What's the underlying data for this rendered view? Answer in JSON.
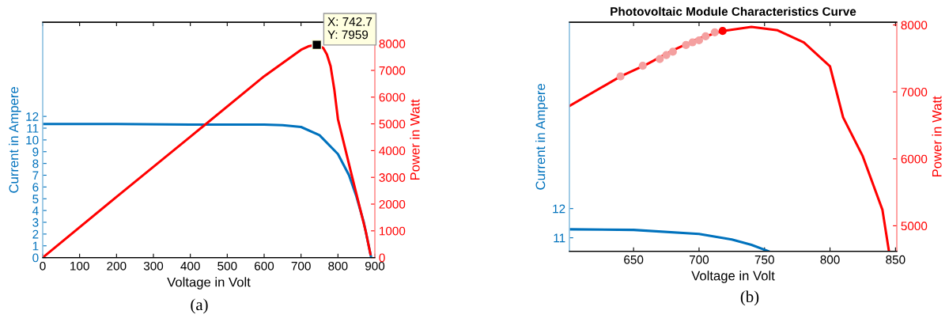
{
  "chart_data": [
    {
      "type": "line",
      "xlabel": "Voltage in Volt",
      "ylabel": "Current in Ampere",
      "y2label": "Power in Watt",
      "xlim": [
        0,
        900
      ],
      "xticks": [
        0,
        100,
        200,
        300,
        400,
        500,
        600,
        700,
        800,
        900
      ],
      "ylim": [
        0,
        20
      ],
      "yticks": [
        0,
        1,
        2,
        3,
        4,
        5,
        6,
        7,
        8,
        9,
        10,
        11,
        12
      ],
      "y2lim": [
        0,
        8800
      ],
      "y2ticks": [
        0,
        1000,
        2000,
        3000,
        4000,
        5000,
        6000,
        7000,
        8000
      ],
      "grid": false,
      "legend": false,
      "series": [
        {
          "color": "#0072bd",
          "x": [
            0,
            200,
            400,
            600,
            650,
            700,
            750,
            800,
            830,
            850,
            870,
            890
          ],
          "values": [
            11.35,
            11.35,
            11.3,
            11.3,
            11.25,
            11.1,
            10.4,
            8.8,
            7.0,
            5.2,
            3.0,
            0
          ]
        },
        {
          "color": "#ff0000",
          "axis": "y2",
          "x": [
            0,
            200,
            400,
            600,
            700,
            720,
            742.7,
            760,
            770,
            780,
            790,
            800,
            837,
            875,
            888
          ],
          "values": [
            0,
            2270,
            4520,
            6780,
            7770,
            7900,
            7959,
            7840,
            7600,
            7160,
            6300,
            5180,
            3100,
            1000,
            130
          ]
        },
        {
          "type": "scatter",
          "color": "#000000",
          "axis": "y2",
          "marker": "square",
          "x": [
            742.7
          ],
          "values": [
            7959
          ]
        }
      ],
      "annotations": [
        "X: 742.7\nY: 7959",
        "(a)"
      ]
    },
    {
      "type": "line",
      "title": "Photovoltaic Module Characteristics Curve",
      "xlabel": "Voltage in Volt",
      "ylabel": "Current in Ampere",
      "y2label": "Power in Watt",
      "xlim": [
        601,
        851
      ],
      "xticks": [
        650,
        700,
        750,
        800,
        850
      ],
      "ylim": [
        10.54,
        18.38
      ],
      "yticks": [
        11,
        12
      ],
      "y2lim": [
        4620,
        8040
      ],
      "y2ticks": [
        5000,
        6000,
        7000,
        8000
      ],
      "grid": false,
      "legend": false,
      "series": [
        {
          "color": "#0072bd",
          "x": [
            601,
            650,
            700,
            725,
            740,
            753
          ],
          "values": [
            11.29,
            11.27,
            11.13,
            10.94,
            10.76,
            10.54
          ]
        },
        {
          "color": "#ff0000",
          "axis": "y2",
          "x": [
            601,
            640,
            660,
            680,
            700,
            718,
            740,
            760,
            780,
            800,
            810,
            825,
            840,
            845
          ],
          "values": [
            6790,
            7230,
            7410,
            7620,
            7800,
            7910,
            7970,
            7920,
            7740,
            7380,
            6620,
            6040,
            5240,
            4620
          ]
        },
        {
          "type": "scatter",
          "color": "#f4a0a0",
          "axis": "y2",
          "marker": "circle",
          "x": [
            640,
            657,
            670,
            675,
            680,
            690,
            695,
            700,
            705,
            712
          ],
          "values": [
            7230,
            7390,
            7490,
            7550,
            7600,
            7700,
            7740,
            7770,
            7830,
            7890
          ]
        },
        {
          "type": "scatter",
          "color": "#ff0000",
          "axis": "y2",
          "marker": "circle",
          "x": [
            718
          ],
          "values": [
            7910
          ]
        }
      ],
      "annotations": [
        "(b)"
      ]
    }
  ]
}
